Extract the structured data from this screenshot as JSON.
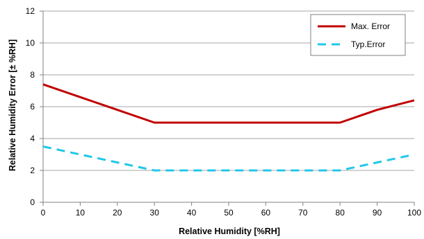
{
  "chart_data": {
    "type": "line",
    "xlabel": "Relative Humidity [%RH]",
    "ylabel": "Relative Humidity Error [± %RH]",
    "xlim": [
      0,
      100
    ],
    "ylim": [
      0,
      12
    ],
    "xticks": [
      0,
      10,
      20,
      30,
      40,
      50,
      60,
      70,
      80,
      90,
      100
    ],
    "yticks": [
      0,
      2,
      4,
      6,
      8,
      10,
      12
    ],
    "grid": "horizontal",
    "legend": "top-right",
    "series": [
      {
        "name": "Max. Error",
        "color": "#c00000",
        "dash": "solid",
        "x": [
          0,
          10,
          20,
          30,
          40,
          50,
          60,
          70,
          80,
          90,
          100
        ],
        "y": [
          7.4,
          6.6,
          5.8,
          5.0,
          5.0,
          5.0,
          5.0,
          5.0,
          5.0,
          5.8,
          6.4
        ]
      },
      {
        "name": "Typ.Error",
        "color": "#1fc8e8",
        "dash": "dashed",
        "x": [
          0,
          10,
          20,
          30,
          40,
          50,
          60,
          70,
          80,
          90,
          100
        ],
        "y": [
          3.5,
          3.0,
          2.5,
          2.0,
          2.0,
          2.0,
          2.0,
          2.0,
          2.0,
          2.5,
          3.0
        ]
      }
    ]
  }
}
